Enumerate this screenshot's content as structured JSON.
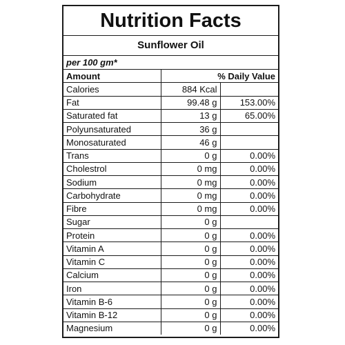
{
  "title": "Nutrition Facts",
  "product": "Sunflower Oil",
  "serving": "per 100 gm*",
  "header": {
    "amount": "Amount",
    "daily_value": "% Daily Value"
  },
  "rows": [
    {
      "name": "Calories",
      "amount": "884 Kcal",
      "dv": ""
    },
    {
      "name": "Fat",
      "amount": "99.48 g",
      "dv": "153.00%"
    },
    {
      "name": "Saturated fat",
      "amount": "13 g",
      "dv": "65.00%"
    },
    {
      "name": "Polyunsaturated",
      "amount": "36 g",
      "dv": ""
    },
    {
      "name": "Monosaturated",
      "amount": "46 g",
      "dv": ""
    },
    {
      "name": "Trans",
      "amount": "0 g",
      "dv": "0.00%"
    },
    {
      "name": "Cholestrol",
      "amount": "0 mg",
      "dv": "0.00%"
    },
    {
      "name": "Sodium",
      "amount": "0 mg",
      "dv": "0.00%"
    },
    {
      "name": "Carbohydrate",
      "amount": "0 mg",
      "dv": "0.00%"
    },
    {
      "name": "Fibre",
      "amount": "0 mg",
      "dv": "0.00%"
    },
    {
      "name": "Sugar",
      "amount": "0 g",
      "dv": ""
    },
    {
      "name": "Protein",
      "amount": "0 g",
      "dv": "0.00%"
    },
    {
      "name": "Vitamin A",
      "amount": "0 g",
      "dv": "0.00%"
    },
    {
      "name": "Vitamin C",
      "amount": "0 g",
      "dv": "0.00%"
    },
    {
      "name": "Calcium",
      "amount": "0 g",
      "dv": "0.00%"
    },
    {
      "name": "Iron",
      "amount": "0 g",
      "dv": "0.00%"
    },
    {
      "name": "Vitamin B-6",
      "amount": "0 g",
      "dv": "0.00%"
    },
    {
      "name": "Vitamin B-12",
      "amount": "0 g",
      "dv": "0.00%"
    },
    {
      "name": "Magnesium",
      "amount": "0 g",
      "dv": "0.00%"
    }
  ]
}
